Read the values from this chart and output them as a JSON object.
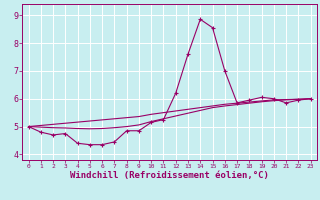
{
  "title": "",
  "xlabel": "Windchill (Refroidissement éolien,°C)",
  "ylabel": "",
  "bg_color": "#c8eef0",
  "grid_color": "#aadddd",
  "line_color": "#990066",
  "x_values": [
    0,
    1,
    2,
    3,
    4,
    5,
    6,
    7,
    8,
    9,
    10,
    11,
    12,
    13,
    14,
    15,
    16,
    17,
    18,
    19,
    20,
    21,
    22,
    23
  ],
  "y_main": [
    5.0,
    4.8,
    4.7,
    4.75,
    4.4,
    4.35,
    4.35,
    4.45,
    4.85,
    4.85,
    5.15,
    5.25,
    6.2,
    7.6,
    8.85,
    8.55,
    7.0,
    5.85,
    5.95,
    6.05,
    6.0,
    5.85,
    5.95,
    6.0
  ],
  "y_line1": [
    5.0,
    5.04,
    5.08,
    5.12,
    5.16,
    5.2,
    5.24,
    5.28,
    5.32,
    5.36,
    5.44,
    5.5,
    5.56,
    5.62,
    5.68,
    5.74,
    5.8,
    5.84,
    5.88,
    5.92,
    5.96,
    5.97,
    5.98,
    6.0
  ],
  "y_line2": [
    5.0,
    4.98,
    4.96,
    4.95,
    4.93,
    4.92,
    4.93,
    4.96,
    5.0,
    5.06,
    5.18,
    5.28,
    5.38,
    5.48,
    5.58,
    5.68,
    5.74,
    5.79,
    5.84,
    5.89,
    5.93,
    5.96,
    5.98,
    6.0
  ],
  "ylim": [
    3.8,
    9.4
  ],
  "xlim": [
    -0.5,
    23.5
  ],
  "yticks": [
    4,
    5,
    6,
    7,
    8,
    9
  ],
  "xticks": [
    0,
    1,
    2,
    3,
    4,
    5,
    6,
    7,
    8,
    9,
    10,
    11,
    12,
    13,
    14,
    15,
    16,
    17,
    18,
    19,
    20,
    21,
    22,
    23
  ]
}
